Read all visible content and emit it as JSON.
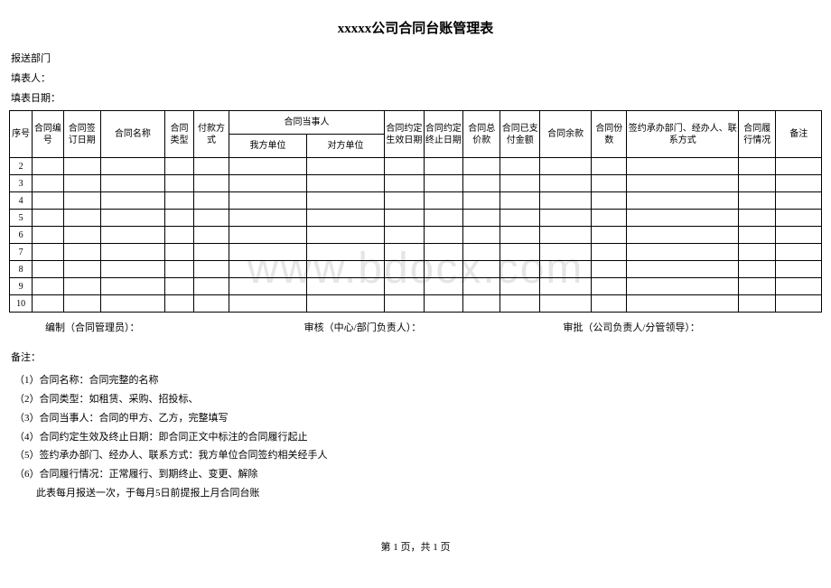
{
  "title": "xxxxx公司合同台账管理表",
  "meta": {
    "dept_label": "报送部门",
    "preparer_label": "填表人：",
    "fill_date_label": "填表日期："
  },
  "watermark": "www.bdocx.com",
  "table": {
    "headers": {
      "seq": "序号",
      "contract_num": "合同编号",
      "sign_date": "合同签订日期",
      "contract_name": "合同名称",
      "contract_type": "合同类型",
      "payment_method": "付款方式",
      "parties": "合同当事人",
      "our_unit": "我方单位",
      "other_unit": "对方单位",
      "effective_date": "合同约定生效日期",
      "end_date": "合同约定终止日期",
      "total_amount": "合同总价款",
      "paid_amount": "合同已支付金额",
      "balance": "合同余款",
      "copies": "合同份数",
      "handler": "签约承办部门、经办人、联系方式",
      "performance": "合同履行情况",
      "remark": "备注"
    },
    "row_numbers": [
      "2",
      "3",
      "4",
      "5",
      "6",
      "7",
      "8",
      "9",
      "10"
    ]
  },
  "signatures": {
    "prepared": "编制（合同管理员）：",
    "reviewed": "审核（中心/部门负责人）：",
    "approved": "审批（公司负责人/分管领导）："
  },
  "notes": {
    "title": "备注：",
    "items": [
      "（1）合同名称：合同完整的名称",
      "（2）合同类型：如租赁、采购、招投标、",
      "（3）合同当事人：合同的甲方、乙方，完整填写",
      "（4）合同约定生效及终止日期：即合同正文中标注的合同履行起止",
      "（5）签约承办部门、经办人、联系方式：我方单位合同签约相关经手人",
      "（6）合同履行情况：正常履行、到期终止、变更、解除"
    ],
    "final": "此表每月报送一次，于每月5日前提报上月合同台账"
  },
  "footer": "第 1 页，共 1 页"
}
